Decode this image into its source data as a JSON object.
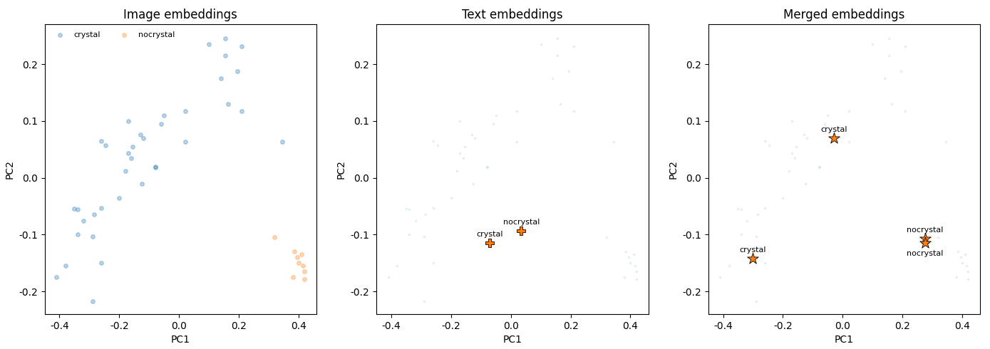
{
  "chart_data": [
    {
      "type": "scatter",
      "title": "Image embeddings",
      "x_label": "PC1",
      "y_label": "PC2",
      "xlim": [
        -0.45,
        0.46
      ],
      "ylim": [
        -0.24,
        0.27
      ],
      "xticks": [
        -0.4,
        -0.2,
        0.0,
        0.2,
        0.4
      ],
      "yticks": [
        -0.2,
        -0.1,
        0.0,
        0.1,
        0.2
      ],
      "legend": "upper left",
      "series": [
        {
          "name": "crystal",
          "color": "#1f77b4",
          "marker": "o",
          "x": [
            0.1,
            0.155,
            0.21,
            0.155,
            0.195,
            0.14,
            0.165,
            0.21,
            0.02,
            -0.17,
            -0.05,
            -0.06,
            -0.13,
            -0.12,
            -0.155,
            -0.26,
            -0.245,
            0.02,
            0.345,
            -0.17,
            -0.16,
            -0.08,
            -0.078,
            -0.18,
            -0.125,
            -0.2,
            -0.26,
            -0.35,
            -0.34,
            -0.285,
            -0.32,
            -0.34,
            -0.29,
            -0.26,
            -0.38,
            -0.41,
            -0.29
          ],
          "y": [
            0.235,
            0.245,
            0.232,
            0.215,
            0.188,
            0.175,
            0.13,
            0.117,
            0.118,
            0.1,
            0.11,
            0.095,
            0.076,
            0.07,
            0.055,
            0.065,
            0.057,
            0.063,
            0.063,
            0.043,
            0.035,
            0.018,
            0.019,
            0.012,
            -0.01,
            -0.035,
            -0.053,
            -0.055,
            -0.056,
            -0.065,
            -0.076,
            -0.1,
            -0.103,
            -0.15,
            -0.155,
            -0.175,
            -0.218
          ]
        },
        {
          "name": "nocrystal",
          "color": "#ff7f0e",
          "marker": "o",
          "x": [
            0.32,
            0.385,
            0.395,
            0.4,
            0.41,
            0.38,
            0.42,
            0.42,
            0.415
          ],
          "y": [
            -0.105,
            -0.13,
            -0.14,
            -0.15,
            -0.135,
            -0.175,
            -0.165,
            -0.178,
            -0.155
          ]
        }
      ]
    },
    {
      "type": "scatter",
      "title": "Text embeddings",
      "x_label": "PC1",
      "y_label": "PC2",
      "xlim": [
        -0.45,
        0.46
      ],
      "ylim": [
        -0.24,
        0.27
      ],
      "xticks": [
        -0.4,
        -0.2,
        0.0,
        0.2,
        0.4
      ],
      "yticks": [
        -0.2,
        -0.1,
        0.0,
        0.1,
        0.2
      ],
      "color": "#ff7f0e",
      "marker": "P",
      "points": [
        {
          "label": "crystal",
          "x": -0.07,
          "y": -0.115
        },
        {
          "label": "nocrystal",
          "x": 0.035,
          "y": -0.093
        }
      ]
    },
    {
      "type": "scatter",
      "title": "Merged embeddings",
      "x_label": "PC1",
      "y_label": "PC2",
      "xlim": [
        -0.45,
        0.46
      ],
      "ylim": [
        -0.24,
        0.27
      ],
      "xticks": [
        -0.4,
        -0.2,
        0.0,
        0.2,
        0.4
      ],
      "yticks": [
        -0.2,
        -0.1,
        0.0,
        0.1,
        0.2
      ],
      "color": "#ff7f0e",
      "marker": "*",
      "points": [
        {
          "label": "crystal",
          "x": -0.03,
          "y": 0.07
        },
        {
          "label": "crystal",
          "x": -0.3,
          "y": -0.142
        },
        {
          "label": "nocrystal",
          "x": 0.275,
          "y": -0.107
        },
        {
          "label": "nocrystal",
          "x": 0.275,
          "y": -0.115
        }
      ]
    }
  ]
}
